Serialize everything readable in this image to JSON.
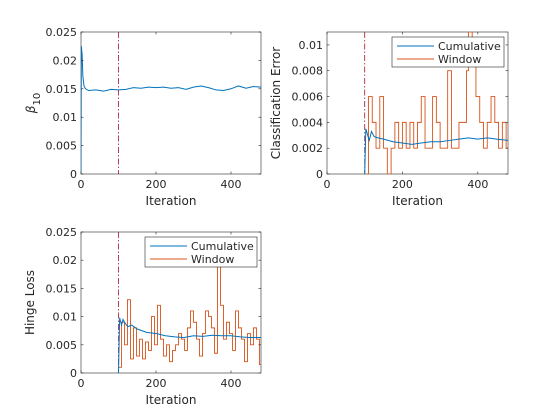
{
  "colors": {
    "cumulative": "#0072BD",
    "window": "#D95319",
    "marker": "#A2142F",
    "axis": "#262626"
  },
  "chart_data": [
    {
      "id": "beta",
      "type": "line",
      "xlabel": "Iteration",
      "ylabel_main": "β",
      "ylabel_sub": "10",
      "xlim": [
        0,
        480
      ],
      "ylim": [
        0,
        0.025
      ],
      "xticks": [
        0,
        200,
        400
      ],
      "yticks": [
        0,
        0.005,
        0.01,
        0.015,
        0.02,
        0.025
      ],
      "ytick_labels": [
        "0",
        "0.005",
        "0.01",
        "0.015",
        "0.02",
        "0.025"
      ],
      "vline": 100,
      "legend": null,
      "series": [
        {
          "key": "cumulative",
          "values": [
            [
              0,
              0
            ],
            [
              1,
              0.0225
            ],
            [
              3,
              0.021
            ],
            [
              5,
              0.0172
            ],
            [
              8,
              0.0155
            ],
            [
              12,
              0.015
            ],
            [
              20,
              0.0147
            ],
            [
              40,
              0.0148
            ],
            [
              60,
              0.0146
            ],
            [
              80,
              0.0149
            ],
            [
              100,
              0.0148
            ],
            [
              120,
              0.0149
            ],
            [
              140,
              0.0152
            ],
            [
              160,
              0.0151
            ],
            [
              180,
              0.0153
            ],
            [
              200,
              0.0152
            ],
            [
              220,
              0.0153
            ],
            [
              240,
              0.0151
            ],
            [
              260,
              0.0152
            ],
            [
              280,
              0.0149
            ],
            [
              300,
              0.0153
            ],
            [
              320,
              0.0155
            ],
            [
              340,
              0.0152
            ],
            [
              360,
              0.0148
            ],
            [
              380,
              0.0147
            ],
            [
              400,
              0.015
            ],
            [
              420,
              0.0155
            ],
            [
              440,
              0.0151
            ],
            [
              460,
              0.0154
            ],
            [
              480,
              0.0153
            ]
          ]
        }
      ]
    },
    {
      "id": "classification",
      "type": "line",
      "xlabel": "Iteration",
      "ylabel": "Classification Error",
      "xlim": [
        0,
        480
      ],
      "ylim": [
        0,
        0.011
      ],
      "xticks": [
        0,
        200,
        400
      ],
      "yticks": [
        0,
        0.002,
        0.004,
        0.006,
        0.008,
        0.01
      ],
      "ytick_labels": [
        "0",
        "0.002",
        "0.004",
        "0.006",
        "0.008",
        "0.01"
      ],
      "vline": 100,
      "legend": {
        "position": "top-right",
        "entries": [
          "Cumulative",
          "Window"
        ]
      },
      "series": [
        {
          "key": "cumulative",
          "name": "Cumulative",
          "values": [
            [
              100,
              0
            ],
            [
              103,
              0.0035
            ],
            [
              107,
              0.0031
            ],
            [
              112,
              0.0026
            ],
            [
              118,
              0.0033
            ],
            [
              125,
              0.0029
            ],
            [
              135,
              0.0028
            ],
            [
              150,
              0.0027
            ],
            [
              175,
              0.0025
            ],
            [
              200,
              0.0024
            ],
            [
              225,
              0.0023
            ],
            [
              250,
              0.0024
            ],
            [
              275,
              0.0025
            ],
            [
              300,
              0.0025
            ],
            [
              325,
              0.0026
            ],
            [
              350,
              0.0027
            ],
            [
              375,
              0.0028
            ],
            [
              400,
              0.0027
            ],
            [
              425,
              0.0028
            ],
            [
              450,
              0.0027
            ],
            [
              480,
              0.0026
            ]
          ]
        },
        {
          "key": "window",
          "name": "Window",
          "values": [
            [
              100,
              0
            ],
            [
              110,
              0.006
            ],
            [
              120,
              0.004
            ],
            [
              130,
              0.002
            ],
            [
              140,
              0.006
            ],
            [
              150,
              0.002
            ],
            [
              160,
              0
            ],
            [
              170,
              0.002
            ],
            [
              180,
              0.004
            ],
            [
              190,
              0.002
            ],
            [
              200,
              0.004
            ],
            [
              210,
              0.002
            ],
            [
              220,
              0.004
            ],
            [
              230,
              0.002
            ],
            [
              240,
              0.004
            ],
            [
              250,
              0.006
            ],
            [
              260,
              0.002
            ],
            [
              270,
              0.002
            ],
            [
              280,
              0.006
            ],
            [
              290,
              0.004
            ],
            [
              300,
              0.002
            ],
            [
              310,
              0.002
            ],
            [
              320,
              0.008
            ],
            [
              330,
              0.002
            ],
            [
              340,
              0.002
            ],
            [
              350,
              0.004
            ],
            [
              360,
              0.004
            ],
            [
              370,
              0.008
            ],
            [
              375,
              0.011
            ],
            [
              385,
              0.01
            ],
            [
              395,
              0.006
            ],
            [
              405,
              0.004
            ],
            [
              415,
              0.002
            ],
            [
              425,
              0.004
            ],
            [
              435,
              0.006
            ],
            [
              445,
              0.004
            ],
            [
              455,
              0.002
            ],
            [
              465,
              0.004
            ],
            [
              475,
              0.002
            ],
            [
              480,
              0.002
            ]
          ]
        }
      ]
    },
    {
      "id": "hinge",
      "type": "line",
      "xlabel": "Iteration",
      "ylabel": "Hinge Loss",
      "xlim": [
        0,
        480
      ],
      "ylim": [
        0,
        0.025
      ],
      "xticks": [
        0,
        200,
        400
      ],
      "yticks": [
        0,
        0.005,
        0.01,
        0.015,
        0.02,
        0.025
      ],
      "ytick_labels": [
        "0",
        "0.005",
        "0.01",
        "0.015",
        "0.02",
        "0.025"
      ],
      "vline": 100,
      "legend": {
        "position": "top-right",
        "entries": [
          "Cumulative",
          "Window"
        ]
      },
      "series": [
        {
          "key": "cumulative",
          "name": "Cumulative",
          "values": [
            [
              100,
              0
            ],
            [
              103,
              0.0098
            ],
            [
              108,
              0.0085
            ],
            [
              112,
              0.0095
            ],
            [
              118,
              0.0088
            ],
            [
              125,
              0.0082
            ],
            [
              135,
              0.0085
            ],
            [
              150,
              0.0078
            ],
            [
              175,
              0.0072
            ],
            [
              200,
              0.007
            ],
            [
              225,
              0.0066
            ],
            [
              250,
              0.0064
            ],
            [
              275,
              0.0063
            ],
            [
              300,
              0.0066
            ],
            [
              325,
              0.0065
            ],
            [
              350,
              0.0067
            ],
            [
              375,
              0.0066
            ],
            [
              400,
              0.0066
            ],
            [
              425,
              0.0064
            ],
            [
              450,
              0.0063
            ],
            [
              480,
              0.0063
            ]
          ]
        },
        {
          "key": "window",
          "name": "Window",
          "values": [
            [
              100,
              0.001
            ],
            [
              108,
              0.009
            ],
            [
              116,
              0.005
            ],
            [
              124,
              0.013
            ],
            [
              132,
              0.0025
            ],
            [
              140,
              0.008
            ],
            [
              148,
              0.003
            ],
            [
              156,
              0.006
            ],
            [
              164,
              0.0025
            ],
            [
              172,
              0.0055
            ],
            [
              180,
              0.004
            ],
            [
              188,
              0.01
            ],
            [
              196,
              0.005
            ],
            [
              204,
              0.012
            ],
            [
              212,
              0.006
            ],
            [
              220,
              0.003
            ],
            [
              228,
              0.005
            ],
            [
              236,
              0.002
            ],
            [
              244,
              0.004
            ],
            [
              252,
              0.005
            ],
            [
              260,
              0.007
            ],
            [
              268,
              0.006
            ],
            [
              276,
              0.004
            ],
            [
              284,
              0.008
            ],
            [
              292,
              0.011
            ],
            [
              300,
              0.009
            ],
            [
              308,
              0.006
            ],
            [
              316,
              0.003
            ],
            [
              324,
              0.007
            ],
            [
              332,
              0.011
            ],
            [
              340,
              0.01
            ],
            [
              348,
              0.008
            ],
            [
              356,
              0.0035
            ],
            [
              364,
              0.019
            ],
            [
              372,
              0.012
            ],
            [
              380,
              0.006
            ],
            [
              388,
              0.009
            ],
            [
              396,
              0.007
            ],
            [
              404,
              0.004
            ],
            [
              412,
              0.011
            ],
            [
              420,
              0.008
            ],
            [
              428,
              0.006
            ],
            [
              436,
              0.002
            ],
            [
              444,
              0.007
            ],
            [
              452,
              0.005
            ],
            [
              460,
              0.008
            ],
            [
              468,
              0.006
            ],
            [
              476,
              0.0015
            ],
            [
              480,
              0.0015
            ]
          ]
        }
      ]
    }
  ]
}
